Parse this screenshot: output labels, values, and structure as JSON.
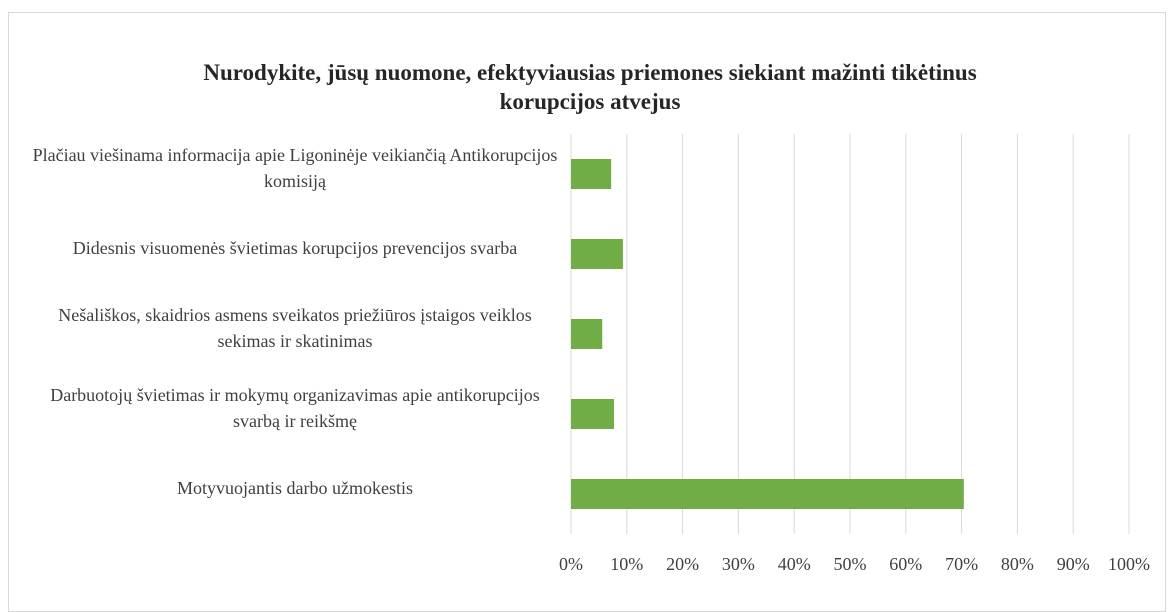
{
  "chart_data": {
    "type": "bar",
    "orientation": "horizontal",
    "title": "Nurodykite, jūsų nuomone, efektyviausias priemones siekiant mažinti tikėtinus korupcijos atvejus",
    "categories": [
      "Plačiau viešinama informacija apie Ligoninėje veikiančią Antikorupcijos komisiją",
      "Didesnis visuomenės švietimas korupcijos prevencijos svarba",
      "Nešališkos, skaidrios asmens sveikatos priežiūros įstaigos veiklos sekimas ir skatinimas",
      "Darbuotojų švietimas ir mokymų organizavimas apie antikorupcijos svarbą ir reikšmę",
      "Motyvuojantis darbo užmokestis"
    ],
    "values": [
      7.2,
      9.3,
      5.6,
      7.7,
      70.4
    ],
    "color": "#70ad47",
    "xlim": [
      0,
      100
    ],
    "xticks": [
      {
        "value": 0,
        "label": "0%"
      },
      {
        "value": 10,
        "label": "10%"
      },
      {
        "value": 20,
        "label": "20%"
      },
      {
        "value": 30,
        "label": "30%"
      },
      {
        "value": 40,
        "label": "40%"
      },
      {
        "value": 50,
        "label": "50%"
      },
      {
        "value": 60,
        "label": "60%"
      },
      {
        "value": 70,
        "label": "70%"
      },
      {
        "value": 80,
        "label": "80%"
      },
      {
        "value": 90,
        "label": "90%"
      },
      {
        "value": 100,
        "label": "100%"
      }
    ],
    "grid": true
  }
}
